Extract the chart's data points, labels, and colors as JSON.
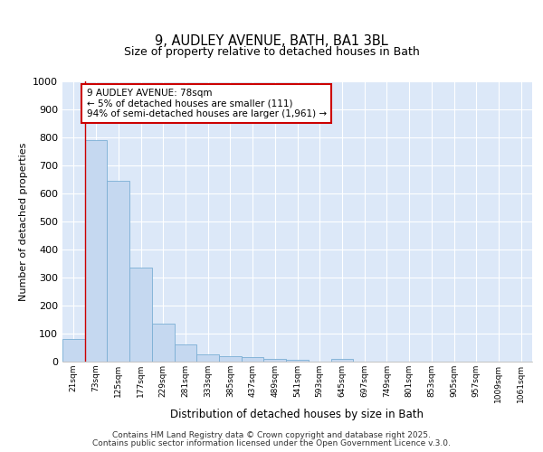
{
  "title1": "9, AUDLEY AVENUE, BATH, BA1 3BL",
  "title2": "Size of property relative to detached houses in Bath",
  "xlabel": "Distribution of detached houses by size in Bath",
  "ylabel": "Number of detached properties",
  "categories": [
    "21sqm",
    "73sqm",
    "125sqm",
    "177sqm",
    "229sqm",
    "281sqm",
    "333sqm",
    "385sqm",
    "437sqm",
    "489sqm",
    "541sqm",
    "593sqm",
    "645sqm",
    "697sqm",
    "749sqm",
    "801sqm",
    "853sqm",
    "905sqm",
    "957sqm",
    "1009sqm",
    "1061sqm"
  ],
  "values": [
    80,
    790,
    645,
    335,
    135,
    60,
    25,
    18,
    15,
    10,
    7,
    0,
    10,
    0,
    0,
    0,
    0,
    0,
    0,
    0,
    0
  ],
  "bar_color": "#c5d8f0",
  "bar_edge_color": "#7bafd4",
  "vline_x": 0.5,
  "vline_color": "#cc0000",
  "annotation_text": "9 AUDLEY AVENUE: 78sqm\n← 5% of detached houses are smaller (111)\n94% of semi-detached houses are larger (1,961) →",
  "annotation_box_color": "#ffffff",
  "annotation_box_edge": "#cc0000",
  "ylim": [
    0,
    1000
  ],
  "yticks": [
    0,
    100,
    200,
    300,
    400,
    500,
    600,
    700,
    800,
    900,
    1000
  ],
  "fig_bg_color": "#ffffff",
  "plot_bg_color": "#dce8f8",
  "footer1": "Contains HM Land Registry data © Crown copyright and database right 2025.",
  "footer2": "Contains public sector information licensed under the Open Government Licence v.3.0."
}
